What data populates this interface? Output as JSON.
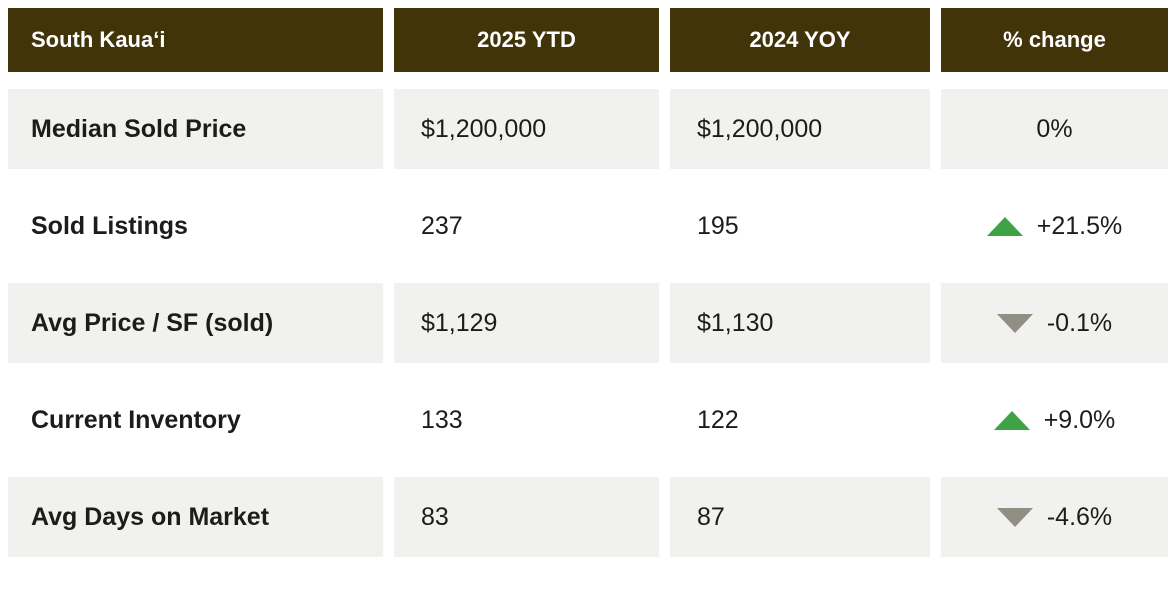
{
  "chart_data": {
    "type": "table",
    "title": "South Kauaʻi",
    "columns": [
      "South Kauaʻi",
      "2025 YTD",
      "2024 YOY",
      "% change"
    ],
    "rows": [
      [
        "Median Sold Price",
        "$1,200,000",
        "$1,200,000",
        "0%"
      ],
      [
        "Sold Listings",
        "237",
        "195",
        "+21.5%"
      ],
      [
        "Avg Price / SF (sold)",
        "$1,129",
        "$1,130",
        "-0.1%"
      ],
      [
        "Current Inventory",
        "133",
        "122",
        "+9.0%"
      ],
      [
        "Avg Days on Market",
        "83",
        "87",
        "-4.6%"
      ]
    ]
  },
  "header": {
    "region": "South Kauaʻi",
    "ytd": "2025 YTD",
    "yoy": "2024 YOY",
    "change": "% change"
  },
  "rows": [
    {
      "label": "Median Sold Price",
      "ytd": "$1,200,000",
      "yoy": "$1,200,000",
      "change": "0%",
      "direction": "none"
    },
    {
      "label": "Sold Listings",
      "ytd": "237",
      "yoy": "195",
      "change": "+21.5%",
      "direction": "up"
    },
    {
      "label": "Avg Price / SF (sold)",
      "ytd": "$1,129",
      "yoy": "$1,130",
      "change": "-0.1%",
      "direction": "down"
    },
    {
      "label": "Current Inventory",
      "ytd": "133",
      "yoy": "122",
      "change": "+9.0%",
      "direction": "up"
    },
    {
      "label": "Avg Days on Market",
      "ytd": "83",
      "yoy": "87",
      "change": "-4.6%",
      "direction": "down"
    }
  ],
  "colors": {
    "header_bg": "#423409",
    "header_text": "#FFFFFF",
    "row_alt_bg": "#F1F2F0",
    "text": "#1D1C1A",
    "up_arrow": "#3FA346",
    "down_arrow": "#918F83"
  }
}
